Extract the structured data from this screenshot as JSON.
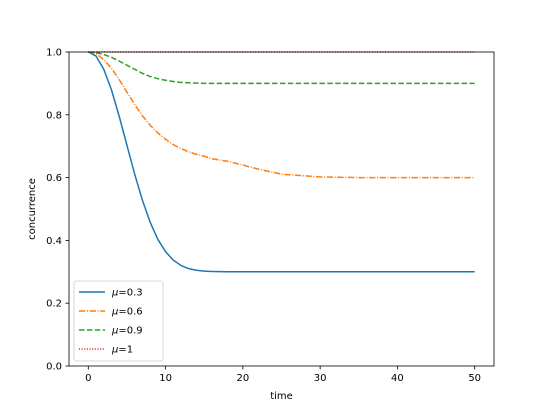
{
  "chart_data": {
    "type": "line",
    "xlabel": "time",
    "ylabel": "concurrence",
    "xlim": [
      -2.5,
      52.5
    ],
    "ylim": [
      0.0,
      1.0
    ],
    "xticks": [
      0,
      10,
      20,
      30,
      40,
      50
    ],
    "yticks": [
      0.0,
      0.2,
      0.4,
      0.6,
      0.8,
      1.0
    ],
    "xtick_labels": [
      "0",
      "10",
      "20",
      "30",
      "40",
      "50"
    ],
    "ytick_labels": [
      "0.0",
      "0.2",
      "0.4",
      "0.6",
      "0.8",
      "1.0"
    ],
    "grid": false,
    "legend_position": "lower-left",
    "x": [
      0,
      1,
      2,
      3,
      4,
      5,
      6,
      7,
      8,
      9,
      10,
      11,
      12,
      13,
      14,
      15,
      16,
      18,
      20,
      22,
      25,
      30,
      35,
      40,
      45,
      50
    ],
    "series": [
      {
        "name": "μ=0.3",
        "label_prefix": "μ",
        "label_value": "=0.3",
        "color": "#1f77b4",
        "dash": "solid",
        "values": [
          1.0,
          0.987,
          0.945,
          0.879,
          0.795,
          0.703,
          0.611,
          0.528,
          0.458,
          0.403,
          0.364,
          0.337,
          0.32,
          0.31,
          0.305,
          0.302,
          0.301,
          0.3,
          0.3,
          0.3,
          0.3,
          0.3,
          0.3,
          0.3,
          0.3,
          0.3
        ]
      },
      {
        "name": "μ=0.6",
        "label_prefix": "μ",
        "label_value": "=0.6",
        "color": "#ff7f0e",
        "dash": "dashdot",
        "values": [
          1.0,
          0.994,
          0.976,
          0.948,
          0.912,
          0.872,
          0.833,
          0.797,
          0.767,
          0.742,
          0.722,
          0.705,
          0.692,
          0.682,
          0.674,
          0.668,
          0.66,
          0.652,
          0.64,
          0.627,
          0.611,
          0.602,
          0.6,
          0.6,
          0.6,
          0.6
        ]
      },
      {
        "name": "μ=0.9",
        "label_prefix": "μ",
        "label_value": "=0.9",
        "color": "#2ca02c",
        "dash": "dashed",
        "values": [
          1.0,
          0.998,
          0.992,
          0.983,
          0.971,
          0.958,
          0.945,
          0.932,
          0.922,
          0.915,
          0.91,
          0.906,
          0.903,
          0.902,
          0.901,
          0.9,
          0.9,
          0.9,
          0.9,
          0.9,
          0.9,
          0.9,
          0.9,
          0.9,
          0.9,
          0.9
        ]
      },
      {
        "name": "μ=1",
        "label_prefix": "μ",
        "label_value": "=1",
        "color": "#d62728",
        "dash": "dotted",
        "values": [
          1.0,
          1.0,
          1.0,
          1.0,
          1.0,
          1.0,
          1.0,
          1.0,
          1.0,
          1.0,
          1.0,
          1.0,
          1.0,
          1.0,
          1.0,
          1.0,
          1.0,
          1.0,
          1.0,
          1.0,
          1.0,
          1.0,
          1.0,
          1.0,
          1.0,
          1.0
        ]
      }
    ]
  }
}
